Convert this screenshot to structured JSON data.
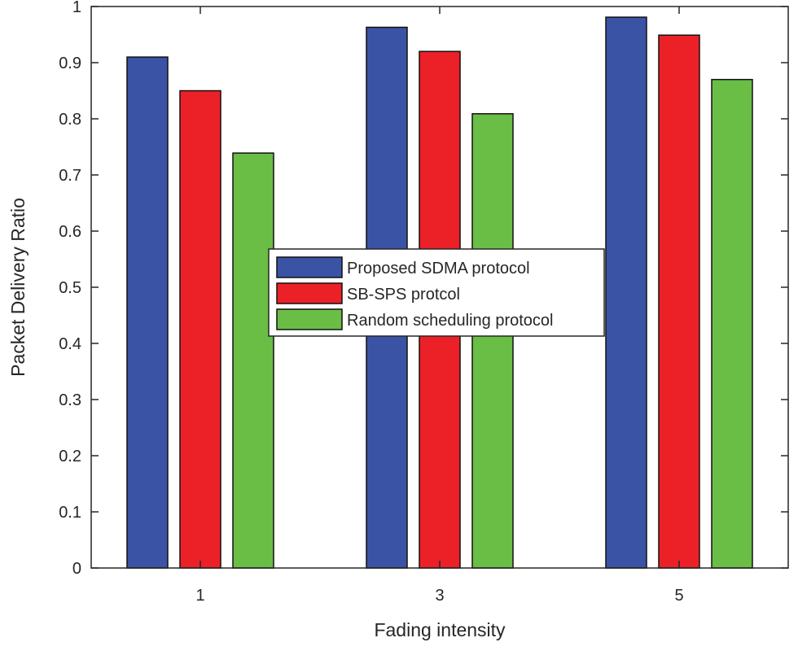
{
  "chart_data": {
    "type": "bar",
    "title": "",
    "xlabel": "Fading intensity",
    "ylabel": "Packet Delivery Ratio",
    "categories": [
      "1",
      "3",
      "5"
    ],
    "series": [
      {
        "name": "Proposed SDMA protocol",
        "color": "#3a53a4",
        "values": [
          0.91,
          0.963,
          0.981
        ]
      },
      {
        "name": "SB-SPS protcol",
        "color": "#ec2027",
        "values": [
          0.85,
          0.92,
          0.949
        ]
      },
      {
        "name": "Random scheduling protocol",
        "color": "#6abd45",
        "values": [
          0.739,
          0.809,
          0.87
        ]
      }
    ],
    "ylim": [
      0,
      1
    ],
    "yticks": [
      "0",
      "0.1",
      "0.2",
      "0.3",
      "0.4",
      "0.5",
      "0.6",
      "0.7",
      "0.8",
      "0.9",
      "1"
    ],
    "legend_position": "center",
    "grid": false
  }
}
